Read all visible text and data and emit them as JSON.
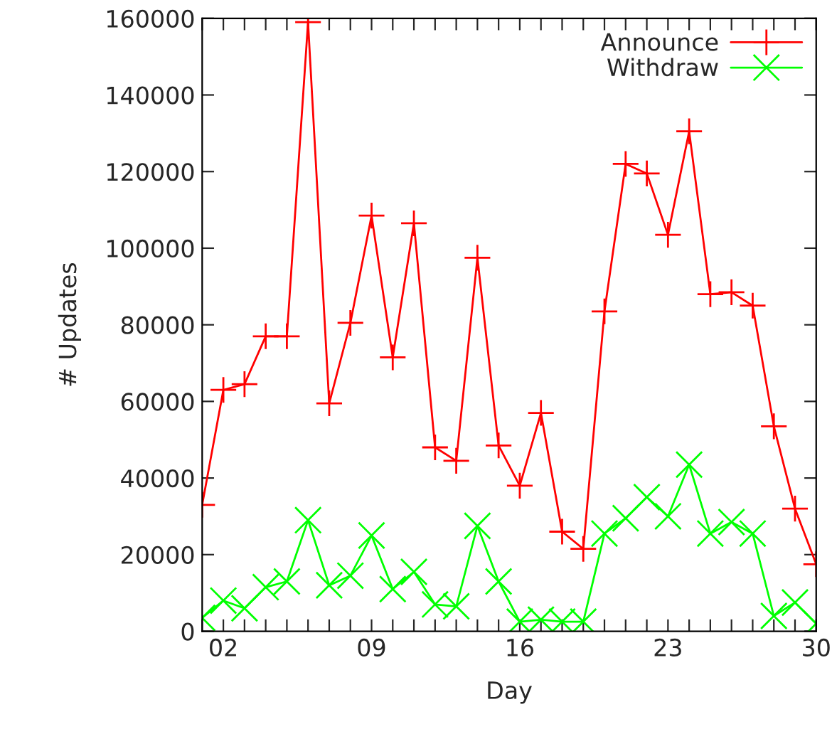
{
  "chart_data": {
    "type": "line",
    "xlabel": "Day",
    "ylabel": "# Updates",
    "x": [
      1,
      2,
      3,
      4,
      5,
      6,
      7,
      8,
      9,
      10,
      11,
      12,
      13,
      14,
      15,
      16,
      17,
      18,
      19,
      20,
      21,
      22,
      23,
      24,
      25,
      26,
      27,
      28,
      29,
      30
    ],
    "series": [
      {
        "name": "Announce",
        "color": "#ff0000",
        "marker": "plus",
        "values": [
          33000,
          63000,
          64500,
          77000,
          77000,
          159000,
          59500,
          80500,
          108500,
          71500,
          106500,
          48000,
          44500,
          97500,
          48500,
          38000,
          57000,
          26000,
          21500,
          83500,
          122000,
          119500,
          103500,
          130500,
          88000,
          88500,
          85000,
          53500,
          32000,
          17500
        ]
      },
      {
        "name": "Withdraw",
        "color": "#00ff00",
        "marker": "cross",
        "values": [
          3500,
          8000,
          6000,
          11500,
          13000,
          29000,
          12000,
          14500,
          25000,
          11000,
          15500,
          7000,
          6500,
          27500,
          13000,
          2500,
          3000,
          2500,
          2500,
          25500,
          29500,
          35000,
          30000,
          43500,
          25500,
          28500,
          25500,
          4000,
          7500,
          2000
        ]
      }
    ],
    "xlim": [
      1,
      30
    ],
    "xticks": [
      {
        "value": 1,
        "label": null
      },
      {
        "value": 2,
        "label": "02"
      },
      {
        "value": 3,
        "label": null
      },
      {
        "value": 4,
        "label": null
      },
      {
        "value": 5,
        "label": null
      },
      {
        "value": 6,
        "label": null
      },
      {
        "value": 7,
        "label": null
      },
      {
        "value": 8,
        "label": null
      },
      {
        "value": 9,
        "label": "09"
      },
      {
        "value": 10,
        "label": null
      },
      {
        "value": 11,
        "label": null
      },
      {
        "value": 12,
        "label": null
      },
      {
        "value": 13,
        "label": null
      },
      {
        "value": 14,
        "label": null
      },
      {
        "value": 15,
        "label": null
      },
      {
        "value": 16,
        "label": "16"
      },
      {
        "value": 17,
        "label": null
      },
      {
        "value": 18,
        "label": null
      },
      {
        "value": 19,
        "label": null
      },
      {
        "value": 20,
        "label": null
      },
      {
        "value": 21,
        "label": null
      },
      {
        "value": 22,
        "label": null
      },
      {
        "value": 23,
        "label": "23"
      },
      {
        "value": 24,
        "label": null
      },
      {
        "value": 25,
        "label": null
      },
      {
        "value": 26,
        "label": null
      },
      {
        "value": 27,
        "label": null
      },
      {
        "value": 28,
        "label": null
      },
      {
        "value": 29,
        "label": null
      },
      {
        "value": 30,
        "label": "30"
      }
    ],
    "ylim": [
      0,
      160000
    ],
    "yticks": [
      0,
      20000,
      40000,
      60000,
      80000,
      100000,
      120000,
      140000,
      160000
    ],
    "grid": false,
    "legend": "top right",
    "line_style": "solid"
  }
}
